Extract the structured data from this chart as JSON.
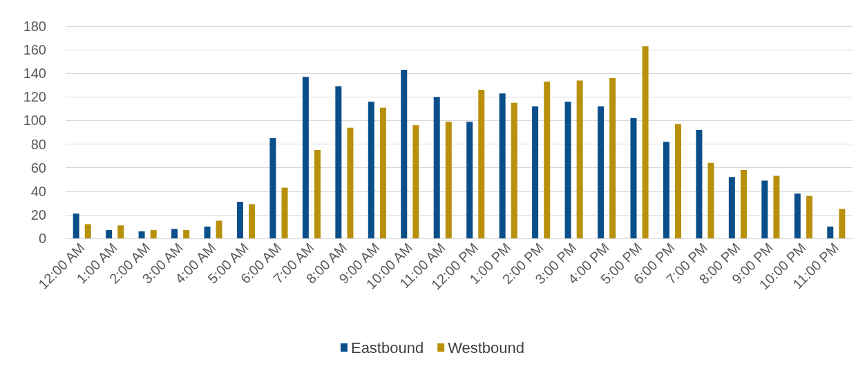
{
  "chart_data": {
    "type": "bar",
    "categories": [
      "12:00 AM",
      "1:00 AM",
      "2:00 AM",
      "3:00 AM",
      "4:00 AM",
      "5:00 AM",
      "6:00 AM",
      "7:00 AM",
      "8:00 AM",
      "9:00 AM",
      "10:00 AM",
      "11:00 AM",
      "12:00 PM",
      "1:00 PM",
      "2:00 PM",
      "3:00 PM",
      "4:00 PM",
      "5:00 PM",
      "6:00 PM",
      "7:00 PM",
      "8:00 PM",
      "9:00 PM",
      "10:00 PM",
      "11:00 PM"
    ],
    "series": [
      {
        "name": "Eastbound",
        "color": "#0b4f8a",
        "values": [
          21,
          7,
          6,
          8,
          10,
          31,
          85,
          137,
          129,
          116,
          143,
          120,
          99,
          123,
          112,
          116,
          112,
          102,
          82,
          92,
          52,
          49,
          38,
          10
        ]
      },
      {
        "name": "Westbound",
        "color": "#b8900b",
        "values": [
          12,
          11,
          7,
          7,
          15,
          29,
          43,
          75,
          94,
          111,
          96,
          99,
          126,
          115,
          133,
          134,
          136,
          163,
          97,
          64,
          58,
          53,
          36,
          25
        ]
      }
    ],
    "ylim": [
      0,
      180
    ],
    "yticks": [
      0,
      20,
      40,
      60,
      80,
      100,
      120,
      140,
      160,
      180
    ],
    "grid": "y",
    "legend": "bottom"
  }
}
